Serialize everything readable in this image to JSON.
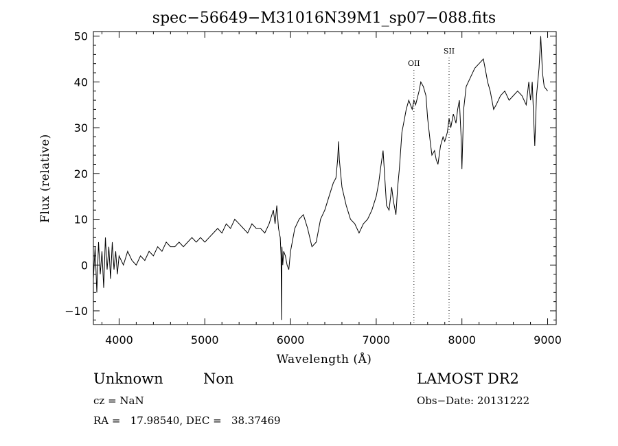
{
  "chart_data": {
    "type": "line",
    "title": "spec−56649−M31016N39M1_sp07−088.fits",
    "xlabel": "Wavelength (Å)",
    "ylabel": "Flux (relative)",
    "xlim": [
      3700,
      9100
    ],
    "ylim": [
      -13,
      51
    ],
    "xticks": [
      4000,
      5000,
      6000,
      7000,
      8000,
      9000
    ],
    "yticks": [
      -10,
      0,
      10,
      20,
      30,
      40,
      50
    ],
    "ytick_labels": [
      "−10",
      "0",
      "10",
      "20",
      "30",
      "40",
      "50"
    ],
    "grid": false,
    "line_markers": [
      {
        "label": "OII",
        "x": 7440
      },
      {
        "label": "SII",
        "x": 7850
      }
    ],
    "series": [
      {
        "x": [
          3700,
          3720,
          3740,
          3760,
          3780,
          3800,
          3820,
          3840,
          3860,
          3880,
          3900,
          3920,
          3940,
          3960,
          3980,
          4000,
          4050,
          4100,
          4150,
          4200,
          4250,
          4300,
          4350,
          4400,
          4450,
          4500,
          4550,
          4600,
          4650,
          4700,
          4750,
          4800,
          4850,
          4900,
          4950,
          5000,
          5050,
          5100,
          5150,
          5200,
          5250,
          5300,
          5350,
          5400,
          5450,
          5500,
          5550,
          5600,
          5650,
          5700,
          5750,
          5800,
          5820,
          5840,
          5860,
          5880,
          5890,
          5895,
          5900,
          5910,
          5920,
          5940,
          5960,
          5980,
          6000,
          6050,
          6100,
          6150,
          6200,
          6250,
          6300,
          6350,
          6400,
          6450,
          6500,
          6530,
          6550,
          6560,
          6570,
          6600,
          6650,
          6700,
          6750,
          6800,
          6850,
          6900,
          6950,
          7000,
          7030,
          7050,
          7080,
          7100,
          7120,
          7150,
          7180,
          7200,
          7230,
          7250,
          7270,
          7300,
          7330,
          7350,
          7380,
          7400,
          7420,
          7440,
          7460,
          7500,
          7520,
          7550,
          7580,
          7600,
          7630,
          7650,
          7680,
          7700,
          7720,
          7750,
          7780,
          7800,
          7830,
          7850,
          7870,
          7900,
          7930,
          7950,
          7970,
          7990,
          8000,
          8020,
          8050,
          8100,
          8150,
          8200,
          8250,
          8280,
          8300,
          8330,
          8350,
          8370,
          8400,
          8450,
          8500,
          8550,
          8600,
          8650,
          8700,
          8750,
          8780,
          8800,
          8820,
          8850,
          8870,
          8900,
          8920,
          8940,
          8960,
          9000
        ],
        "y": [
          -3,
          4,
          -6,
          5,
          -2,
          3,
          -5,
          6,
          -1,
          4,
          -3,
          5,
          -1,
          3,
          -2,
          2,
          0,
          3,
          1,
          0,
          2,
          1,
          3,
          2,
          4,
          3,
          5,
          4,
          4,
          5,
          4,
          5,
          6,
          5,
          6,
          5,
          6,
          7,
          8,
          7,
          9,
          8,
          10,
          9,
          8,
          7,
          9,
          8,
          8,
          7,
          9,
          12,
          9,
          13,
          8,
          6,
          2,
          -12,
          4,
          0,
          3,
          2,
          0,
          -1,
          3,
          8,
          10,
          11,
          8,
          4,
          5,
          10,
          12,
          15,
          18,
          19,
          23,
          27,
          23,
          17,
          13,
          10,
          9,
          7,
          9,
          10,
          12,
          15,
          18,
          21,
          25,
          19,
          13,
          12,
          17,
          14,
          11,
          17,
          21,
          29,
          32,
          34,
          36,
          35,
          34,
          36,
          35,
          38,
          40,
          39,
          37,
          32,
          27,
          24,
          25,
          23,
          22,
          26,
          28,
          27,
          29,
          32,
          30,
          33,
          31,
          34,
          36,
          28,
          21,
          34,
          39,
          41,
          43,
          44,
          45,
          42,
          40,
          38,
          36,
          34,
          35,
          37,
          38,
          36,
          37,
          38,
          37,
          35,
          40,
          36,
          40,
          26,
          37,
          43,
          50,
          42,
          39,
          38
        ]
      }
    ]
  },
  "info": {
    "class_label": "Unknown",
    "subclass_label": "Non",
    "survey_label": "LAMOST DR2",
    "cz_text": "cz = NaN",
    "obs_date_text": "Obs−Date: 20131222",
    "coords_text": "RA =   17.98540, DEC =   38.37469"
  }
}
